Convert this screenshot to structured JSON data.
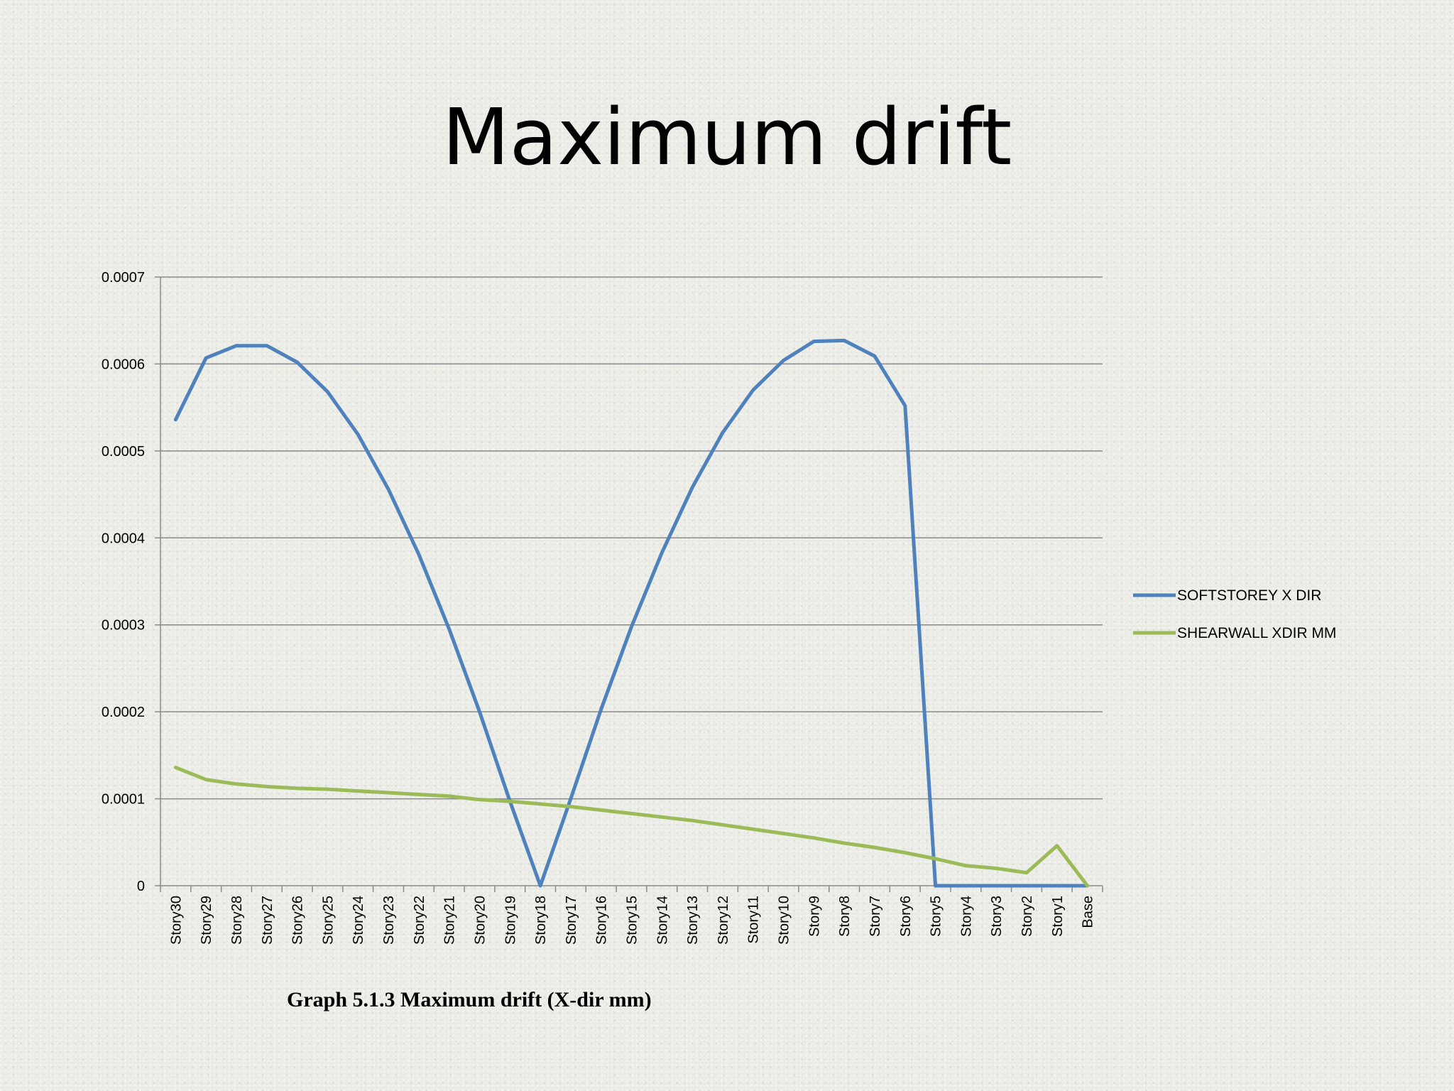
{
  "slide": {
    "title": "Maximum drift",
    "caption": "Graph 5.1.3 Maximum drift (X-dir mm)"
  },
  "chart_data": {
    "type": "line",
    "categories": [
      "Story30",
      "Story29",
      "Story28",
      "Story27",
      "Story26",
      "Story25",
      "Story24",
      "Story23",
      "Story22",
      "Story21",
      "Story20",
      "Story19",
      "Story18",
      "Story17",
      "Story16",
      "Story15",
      "Story14",
      "Story13",
      "Story12",
      "Story11",
      "Story10",
      "Story9",
      "Story8",
      "Story7",
      "Story6",
      "Story5",
      "Story4",
      "Story3",
      "Story2",
      "Story1",
      "Base"
    ],
    "series": [
      {
        "name": "SOFTSTOREY X DIR",
        "color": "#4f81bd",
        "values": [
          0.000536,
          0.000607,
          0.000621,
          0.000621,
          0.000602,
          0.000568,
          0.000519,
          0.000456,
          0.000381,
          0.000295,
          0.0002,
          9.7e-05,
          0.0,
          0.0001,
          0.000203,
          0.000298,
          0.000383,
          0.000458,
          0.000521,
          0.00057,
          0.000604,
          0.000626,
          0.000627,
          0.000609,
          0.000552,
          0.0,
          0.0,
          0.0,
          0.0,
          0.0,
          0.0
        ]
      },
      {
        "name": "SHEARWALL XDIR MM",
        "color": "#9bbb59",
        "values": [
          0.000136,
          0.000122,
          0.000117,
          0.000114,
          0.000112,
          0.000111,
          0.000109,
          0.000107,
          0.000105,
          0.000103,
          9.9e-05,
          9.7e-05,
          9.4e-05,
          9.1e-05,
          8.7e-05,
          8.3e-05,
          7.9e-05,
          7.5e-05,
          7e-05,
          6.5e-05,
          6e-05,
          5.5e-05,
          4.9e-05,
          4.4e-05,
          3.8e-05,
          3.1e-05,
          2.3e-05,
          2e-05,
          1.5e-05,
          4.6e-05,
          0.0
        ]
      }
    ],
    "y_ticks": [
      "0",
      "0.0001",
      "0.0002",
      "0.0003",
      "0.0004",
      "0.0005",
      "0.0006",
      "0.0007"
    ],
    "ylim": [
      0,
      0.0007
    ],
    "grid": true,
    "legend_position": "right"
  }
}
